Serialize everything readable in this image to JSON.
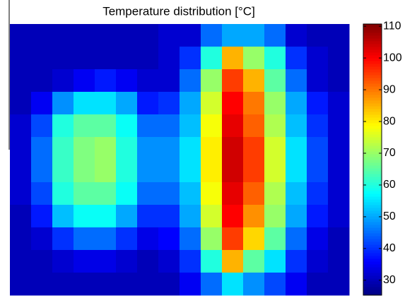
{
  "chart_data": {
    "type": "heatmap",
    "title": "Temperature distribution [°C]",
    "colormap": "jet",
    "clim": [
      25.3,
      110.7
    ],
    "cticks": [
      30,
      40,
      50,
      60,
      70,
      80,
      90,
      100,
      110
    ],
    "z": [
      [
        30,
        30,
        30,
        30,
        30,
        30,
        30,
        32,
        32,
        45,
        50,
        50,
        45,
        32,
        30,
        30
      ],
      [
        30,
        30,
        30,
        30,
        30,
        30,
        30,
        32,
        40,
        60,
        85,
        70,
        60,
        40,
        32,
        30
      ],
      [
        30,
        30,
        32,
        35,
        38,
        35,
        32,
        32,
        45,
        70,
        95,
        85,
        65,
        45,
        32,
        30
      ],
      [
        30,
        35,
        48,
        55,
        55,
        50,
        38,
        40,
        50,
        75,
        100,
        90,
        70,
        50,
        38,
        32
      ],
      [
        32,
        42,
        60,
        65,
        65,
        58,
        45,
        45,
        52,
        78,
        102,
        92,
        72,
        52,
        40,
        32
      ],
      [
        32,
        45,
        62,
        68,
        70,
        60,
        48,
        48,
        55,
        80,
        104,
        95,
        75,
        55,
        42,
        32
      ],
      [
        32,
        45,
        62,
        68,
        70,
        60,
        48,
        48,
        55,
        80,
        104,
        95,
        75,
        55,
        42,
        32
      ],
      [
        32,
        42,
        60,
        65,
        65,
        58,
        45,
        45,
        52,
        78,
        102,
        92,
        72,
        52,
        40,
        32
      ],
      [
        30,
        38,
        52,
        58,
        58,
        50,
        40,
        40,
        50,
        75,
        100,
        88,
        70,
        50,
        38,
        32
      ],
      [
        30,
        32,
        40,
        45,
        45,
        40,
        34,
        36,
        45,
        70,
        95,
        82,
        65,
        45,
        34,
        30
      ],
      [
        30,
        30,
        32,
        34,
        34,
        32,
        30,
        32,
        40,
        60,
        85,
        65,
        55,
        40,
        32,
        30
      ],
      [
        30,
        30,
        30,
        30,
        30,
        30,
        30,
        30,
        35,
        45,
        55,
        48,
        42,
        35,
        30,
        30
      ]
    ]
  }
}
